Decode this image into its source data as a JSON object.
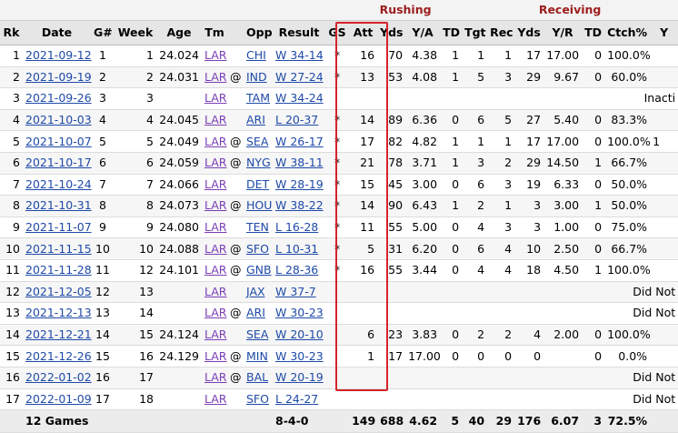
{
  "groups": {
    "rushing": "Rushing",
    "receiving": "Receiving"
  },
  "headers": [
    "Rk",
    "Date",
    "G#",
    "Week",
    "Age",
    "Tm",
    "",
    "Opp",
    "Result",
    "GS",
    "Att",
    "Yds",
    "Y/A",
    "TD",
    "Tgt",
    "Rec",
    "Yds",
    "Y/R",
    "TD",
    "Ctch%",
    "Y"
  ],
  "rows": [
    {
      "rk": "1",
      "date": "2021-09-12",
      "g": "1",
      "week": "1",
      "age": "24.024",
      "tm": "LAR",
      "at": "",
      "opp": "CHI",
      "result": "W 34-14",
      "gs": "*",
      "att": "16",
      "ryds": "70",
      "ya": "4.38",
      "rtd": "1",
      "tgt": "1",
      "rec": "1",
      "cyds": "17",
      "yr": "17.00",
      "ctd": "0",
      "ctch": "100.0%",
      "y": ""
    },
    {
      "rk": "2",
      "date": "2021-09-19",
      "g": "2",
      "week": "2",
      "age": "24.031",
      "tm": "LAR",
      "at": "@",
      "opp": "IND",
      "result": "W 27-24",
      "gs": "*",
      "att": "13",
      "ryds": "53",
      "ya": "4.08",
      "rtd": "1",
      "tgt": "5",
      "rec": "3",
      "cyds": "29",
      "yr": "9.67",
      "ctd": "0",
      "ctch": "60.0%",
      "y": ""
    },
    {
      "rk": "3",
      "date": "2021-09-26",
      "g": "3",
      "week": "3",
      "age": "",
      "tm": "LAR",
      "at": "",
      "opp": "TAM",
      "result": "W 34-24",
      "note": "Inacti"
    },
    {
      "rk": "4",
      "date": "2021-10-03",
      "g": "4",
      "week": "4",
      "age": "24.045",
      "tm": "LAR",
      "at": "",
      "opp": "ARI",
      "result": "L 20-37",
      "gs": "*",
      "att": "14",
      "ryds": "89",
      "ya": "6.36",
      "rtd": "0",
      "tgt": "6",
      "rec": "5",
      "cyds": "27",
      "yr": "5.40",
      "ctd": "0",
      "ctch": "83.3%",
      "y": ""
    },
    {
      "rk": "5",
      "date": "2021-10-07",
      "g": "5",
      "week": "5",
      "age": "24.049",
      "tm": "LAR",
      "at": "@",
      "opp": "SEA",
      "result": "W 26-17",
      "gs": "*",
      "att": "17",
      "ryds": "82",
      "ya": "4.82",
      "rtd": "1",
      "tgt": "1",
      "rec": "1",
      "cyds": "17",
      "yr": "17.00",
      "ctd": "0",
      "ctch": "100.0%",
      "y": "1"
    },
    {
      "rk": "6",
      "date": "2021-10-17",
      "g": "6",
      "week": "6",
      "age": "24.059",
      "tm": "LAR",
      "at": "@",
      "opp": "NYG",
      "result": "W 38-11",
      "gs": "*",
      "att": "21",
      "ryds": "78",
      "ya": "3.71",
      "rtd": "1",
      "tgt": "3",
      "rec": "2",
      "cyds": "29",
      "yr": "14.50",
      "ctd": "1",
      "ctch": "66.7%",
      "y": ""
    },
    {
      "rk": "7",
      "date": "2021-10-24",
      "g": "7",
      "week": "7",
      "age": "24.066",
      "tm": "LAR",
      "at": "",
      "opp": "DET",
      "result": "W 28-19",
      "gs": "*",
      "att": "15",
      "ryds": "45",
      "ya": "3.00",
      "rtd": "0",
      "tgt": "6",
      "rec": "3",
      "cyds": "19",
      "yr": "6.33",
      "ctd": "0",
      "ctch": "50.0%",
      "y": ""
    },
    {
      "rk": "8",
      "date": "2021-10-31",
      "g": "8",
      "week": "8",
      "age": "24.073",
      "tm": "LAR",
      "at": "@",
      "opp": "HOU",
      "result": "W 38-22",
      "gs": "*",
      "att": "14",
      "ryds": "90",
      "ya": "6.43",
      "rtd": "1",
      "tgt": "2",
      "rec": "1",
      "cyds": "3",
      "yr": "3.00",
      "ctd": "1",
      "ctch": "50.0%",
      "y": ""
    },
    {
      "rk": "9",
      "date": "2021-11-07",
      "g": "9",
      "week": "9",
      "age": "24.080",
      "tm": "LAR",
      "at": "",
      "opp": "TEN",
      "result": "L 16-28",
      "gs": "*",
      "att": "11",
      "ryds": "55",
      "ya": "5.00",
      "rtd": "0",
      "tgt": "4",
      "rec": "3",
      "cyds": "3",
      "yr": "1.00",
      "ctd": "0",
      "ctch": "75.0%",
      "y": ""
    },
    {
      "rk": "10",
      "date": "2021-11-15",
      "g": "10",
      "week": "10",
      "age": "24.088",
      "tm": "LAR",
      "at": "@",
      "opp": "SFO",
      "result": "L 10-31",
      "gs": "*",
      "att": "5",
      "ryds": "31",
      "ya": "6.20",
      "rtd": "0",
      "tgt": "6",
      "rec": "4",
      "cyds": "10",
      "yr": "2.50",
      "ctd": "0",
      "ctch": "66.7%",
      "y": ""
    },
    {
      "rk": "11",
      "date": "2021-11-28",
      "g": "11",
      "week": "12",
      "age": "24.101",
      "tm": "LAR",
      "at": "@",
      "opp": "GNB",
      "result": "L 28-36",
      "gs": "*",
      "att": "16",
      "ryds": "55",
      "ya": "3.44",
      "rtd": "0",
      "tgt": "4",
      "rec": "4",
      "cyds": "18",
      "yr": "4.50",
      "ctd": "1",
      "ctch": "100.0%",
      "y": ""
    },
    {
      "rk": "12",
      "date": "2021-12-05",
      "g": "12",
      "week": "13",
      "age": "",
      "tm": "LAR",
      "at": "",
      "opp": "JAX",
      "result": "W 37-7",
      "note": "Did Not"
    },
    {
      "rk": "13",
      "date": "2021-12-13",
      "g": "13",
      "week": "14",
      "age": "",
      "tm": "LAR",
      "at": "@",
      "opp": "ARI",
      "result": "W 30-23",
      "note": "Did Not"
    },
    {
      "rk": "14",
      "date": "2021-12-21",
      "g": "14",
      "week": "15",
      "age": "24.124",
      "tm": "LAR",
      "at": "",
      "opp": "SEA",
      "result": "W 20-10",
      "gs": "",
      "att": "6",
      "ryds": "23",
      "ya": "3.83",
      "rtd": "0",
      "tgt": "2",
      "rec": "2",
      "cyds": "4",
      "yr": "2.00",
      "ctd": "0",
      "ctch": "100.0%",
      "y": ""
    },
    {
      "rk": "15",
      "date": "2021-12-26",
      "g": "15",
      "week": "16",
      "age": "24.129",
      "tm": "LAR",
      "at": "@",
      "opp": "MIN",
      "result": "W 30-23",
      "gs": "",
      "att": "1",
      "ryds": "17",
      "ya": "17.00",
      "rtd": "0",
      "tgt": "0",
      "rec": "0",
      "cyds": "0",
      "yr": "",
      "ctd": "0",
      "ctch": "0.0%",
      "y": ""
    },
    {
      "rk": "16",
      "date": "2022-01-02",
      "g": "16",
      "week": "17",
      "age": "",
      "tm": "LAR",
      "at": "@",
      "opp": "BAL",
      "result": "W 20-19",
      "note": "Did Not"
    },
    {
      "rk": "17",
      "date": "2022-01-09",
      "g": "17",
      "week": "18",
      "age": "",
      "tm": "LAR",
      "at": "",
      "opp": "SFO",
      "result": "L 24-27",
      "note": "Did Not"
    }
  ],
  "totals": {
    "label": "12 Games",
    "result": "8-4-0",
    "att": "149",
    "ryds": "688",
    "ya": "4.62",
    "rtd": "5",
    "tgt": "40",
    "rec": "29",
    "cyds": "176",
    "yr": "6.07",
    "ctd": "3",
    "ctch": "72.5%",
    "y": ""
  }
}
